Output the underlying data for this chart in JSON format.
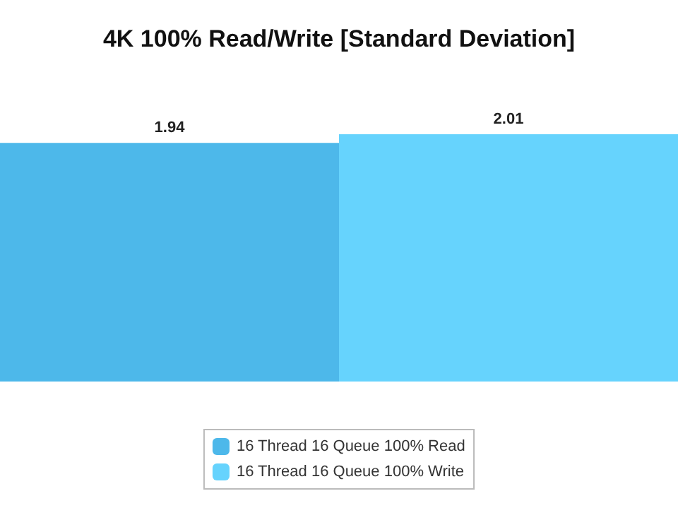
{
  "chart_data": {
    "type": "bar",
    "title": "4K 100% Read/Write [Standard Deviation]",
    "categories": [
      null
    ],
    "series": [
      {
        "name": "16 Thread 16 Queue 100% Read",
        "color": "#4db8ea",
        "values": [
          1.94
        ]
      },
      {
        "name": "16 Thread 16 Queue 100% Write",
        "color": "#66d3fd",
        "values": [
          2.01
        ]
      }
    ],
    "data_labels": true,
    "legend": "bottom"
  }
}
